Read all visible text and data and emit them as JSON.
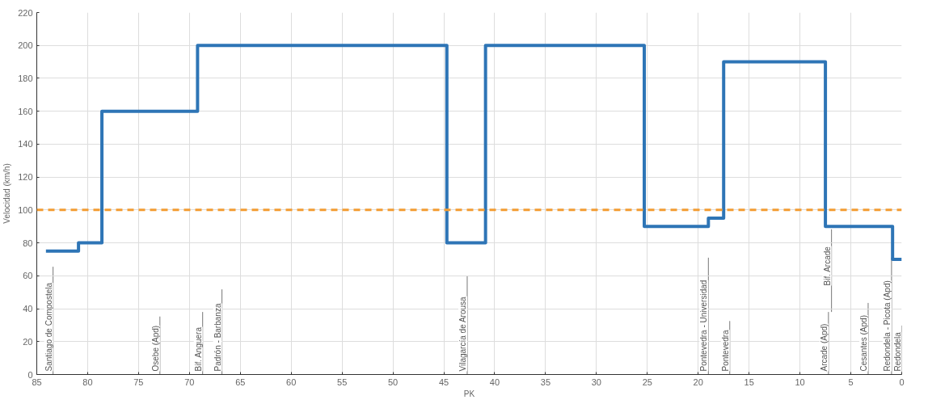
{
  "chart_data": {
    "type": "step",
    "xlabel": "PK",
    "ylabel": "Velocidad (km/h)",
    "x": [
      84.1,
      80.9,
      78.6,
      69.2,
      44.7,
      40.9,
      25.3,
      19.0,
      17.5,
      7.5,
      0.9,
      0
    ],
    "series": [
      {
        "color": "#2e75b6",
        "values": [
          75,
          80,
          160,
          200,
          80,
          200,
          90,
          95,
          190,
          90,
          70,
          70
        ]
      }
    ],
    "xlim": [
      85,
      0
    ],
    "xticks": [
      85,
      80,
      75,
      70,
      65,
      60,
      55,
      50,
      45,
      40,
      35,
      30,
      25,
      20,
      15,
      10,
      5,
      0
    ],
    "ylim": [
      0,
      220
    ],
    "yticks": [
      0,
      20,
      40,
      60,
      80,
      100,
      120,
      140,
      160,
      180,
      200,
      220
    ],
    "grid": true,
    "ref_lines": [
      {
        "axis": "y",
        "value": 100,
        "color": "#f39c32",
        "line_style": "dashed"
      },
      {
        "axis": "x",
        "value": 83.4,
        "label": "Santiago de Compostela"
      },
      {
        "axis": "x",
        "value": 72.9,
        "label": "Osebe (Apd)"
      },
      {
        "axis": "x",
        "value": 68.7,
        "label": "Bif. Anguera"
      },
      {
        "axis": "x",
        "value": 66.8,
        "label": "Padrón - Barbanza"
      },
      {
        "axis": "x",
        "value": 42.7,
        "label": "Vilagarcía de Arousa"
      },
      {
        "axis": "x",
        "value": 19.0,
        "label": "Pontevedra - Universidad"
      },
      {
        "axis": "x",
        "value": 16.9,
        "label": "Pontevedra"
      },
      {
        "axis": "x",
        "value": 7.2,
        "label": "Arcade (Apd)"
      },
      {
        "axis": "x",
        "value": 6.9,
        "label": "Bif. Arcade"
      },
      {
        "axis": "x",
        "value": 3.3,
        "label": "Cesantes (Apd)"
      },
      {
        "axis": "x",
        "value": 1.0,
        "label": "Redondela - Picota (Apd)"
      },
      {
        "axis": "x",
        "value": 0,
        "label": "Redondela"
      }
    ]
  }
}
